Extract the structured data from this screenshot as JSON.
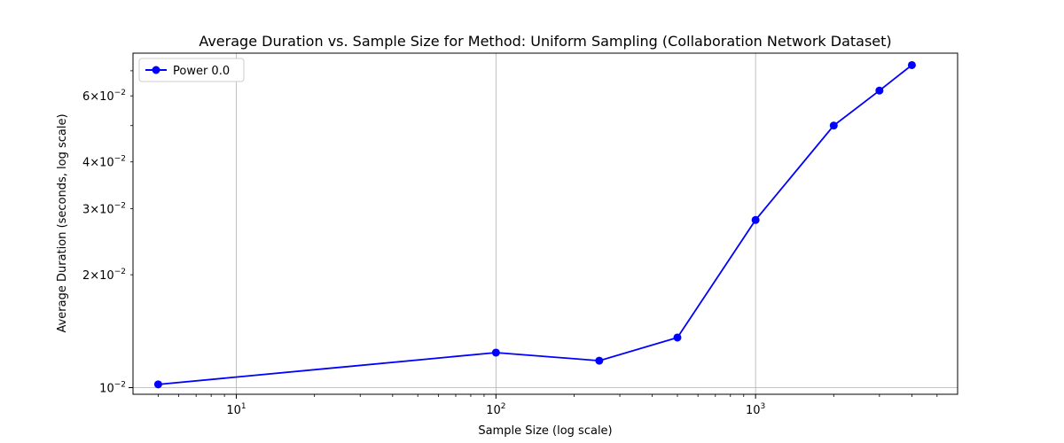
{
  "chart_data": {
    "type": "line",
    "title": "Average Duration vs. Sample Size for Method: Uniform Sampling (Collaboration Network Dataset)",
    "xlabel": "Sample Size (log scale)",
    "ylabel": "Average Duration (seconds, log scale)",
    "xscale": "log",
    "yscale": "log",
    "xlim": [
      4,
      6000
    ],
    "ylim": [
      0.0096,
      0.078
    ],
    "grid": "x",
    "legend_position": "top-left",
    "x_ticks": [
      {
        "value": 10,
        "base": "10",
        "exp": "1"
      },
      {
        "value": 100,
        "base": "10",
        "exp": "2"
      },
      {
        "value": 1000,
        "base": "10",
        "exp": "3"
      }
    ],
    "y_ticks": [
      {
        "value": 0.01,
        "pre": "",
        "base": "10",
        "exp": "−2"
      },
      {
        "value": 0.02,
        "pre": "2×",
        "base": "10",
        "exp": "−2"
      },
      {
        "value": 0.03,
        "pre": "3×",
        "base": "10",
        "exp": "−2"
      },
      {
        "value": 0.04,
        "pre": "4×",
        "base": "10",
        "exp": "−2"
      },
      {
        "value": 0.06,
        "pre": "6×",
        "base": "10",
        "exp": "−2"
      }
    ],
    "series": [
      {
        "name": "Power 0.0",
        "color": "#0000ff",
        "x": [
          5,
          100,
          250,
          500,
          1000,
          2000,
          3000,
          4000
        ],
        "y": [
          0.0102,
          0.0124,
          0.0118,
          0.0136,
          0.028,
          0.05,
          0.062,
          0.0725
        ]
      }
    ]
  }
}
